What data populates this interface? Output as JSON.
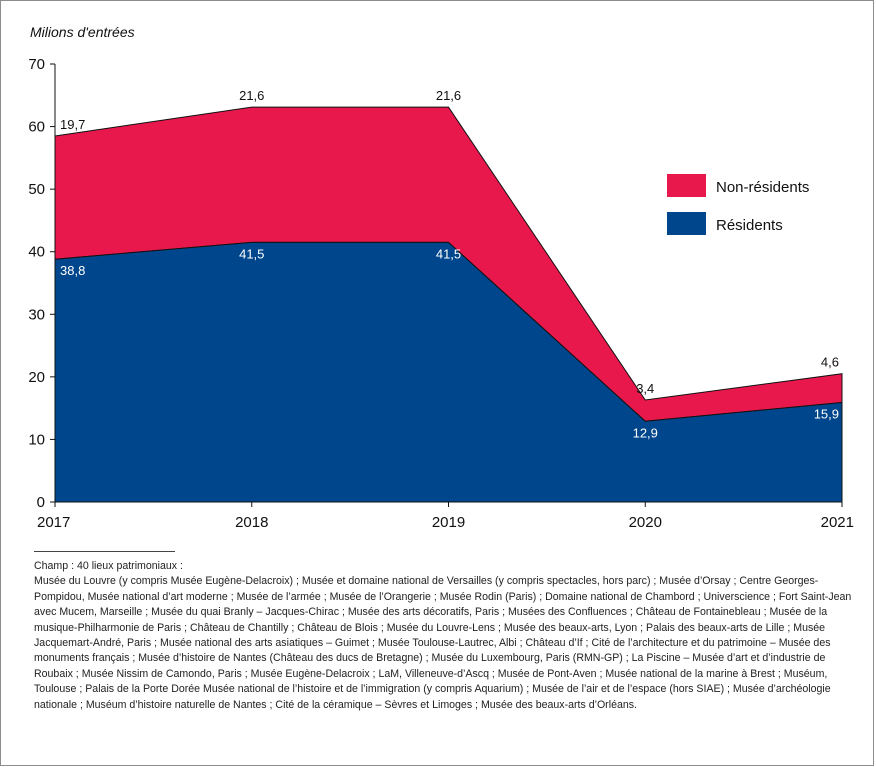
{
  "chart_data": {
    "type": "area",
    "stacked": true,
    "unit_label": "Milions d'entrées",
    "categories": [
      "2017",
      "2018",
      "2019",
      "2020",
      "2021"
    ],
    "yticks": [
      "0",
      "10",
      "20",
      "30",
      "40",
      "50",
      "60",
      "70"
    ],
    "ylim": [
      0,
      70
    ],
    "series": [
      {
        "name": "Résidents",
        "values": [
          38.8,
          41.5,
          41.5,
          12.9,
          15.9
        ],
        "labels": [
          "38,8",
          "41,5",
          "41,5",
          "12,9",
          "15,9"
        ],
        "color": "#00468c"
      },
      {
        "name": "Non-résidents",
        "values": [
          19.7,
          21.6,
          21.6,
          3.4,
          4.6
        ],
        "labels": [
          "19,7",
          "21,6",
          "21,6",
          "3,4",
          "4,6"
        ],
        "color": "#e8184d"
      }
    ],
    "legend": {
      "position": "right",
      "entries": [
        "Non-résidents",
        "Résidents"
      ]
    },
    "grid": false
  },
  "footnote": {
    "field": "Champ : 40 lieux patrimoniaux :",
    "body": "Musée du Louvre (y compris Musée Eugène-Delacroix) ; Musée et domaine national de Versailles (y compris spectacles, hors parc) ; Musée d’Orsay ; Centre Georges-Pompidou, Musée national d’art moderne ; Musée de l’armée ; Musée de l’Orangerie ; Musée Rodin (Paris) ; Domaine national de Chambord ; Universcience ; Fort Saint-Jean avec Mucem, Marseille ; Musée du quai Branly – Jacques-Chirac ; Musée des arts décoratifs, Paris ; Musées des Confluences ; Château de Fontainebleau ; Musée de la musique-Philharmonie de Paris ; Château de Chantilly ; Château de Blois ; Musée du Louvre-Lens ; Musée des beaux-arts, Lyon ; Palais des beaux-arts de Lille ; Musée Jacquemart-André, Paris ; Musée national des arts asiatiques – Guimet ; Musée Toulouse-Lautrec, Albi ; Château d’If ; Cité de l’architecture et du patrimoine – Musée des monuments français ; Musée d’histoire de Nantes (Château des ducs de Bretagne) ; Musée du Luxembourg, Paris (RMN-GP) ; La Piscine – Musée d’art et d’industrie de Roubaix ; Musée Nissim de Camondo, Paris ; Musée Eugène-Delacroix ; LaM, Villeneuve-d’Ascq ; Musée de Pont-Aven ; Musée national de la marine à Brest ; Muséum, Toulouse ; Palais de la Porte Dorée Musée national de l’histoire et de l’immigration (y compris Aquarium) ; Musée de l’air et de l’espace (hors SIAE) ; Musée d’archéologie nationale ; Muséum d’histoire naturelle de Nantes ; Cité de la céramique – Sèvres et Limoges ; Musée des beaux-arts d’Orléans."
  }
}
